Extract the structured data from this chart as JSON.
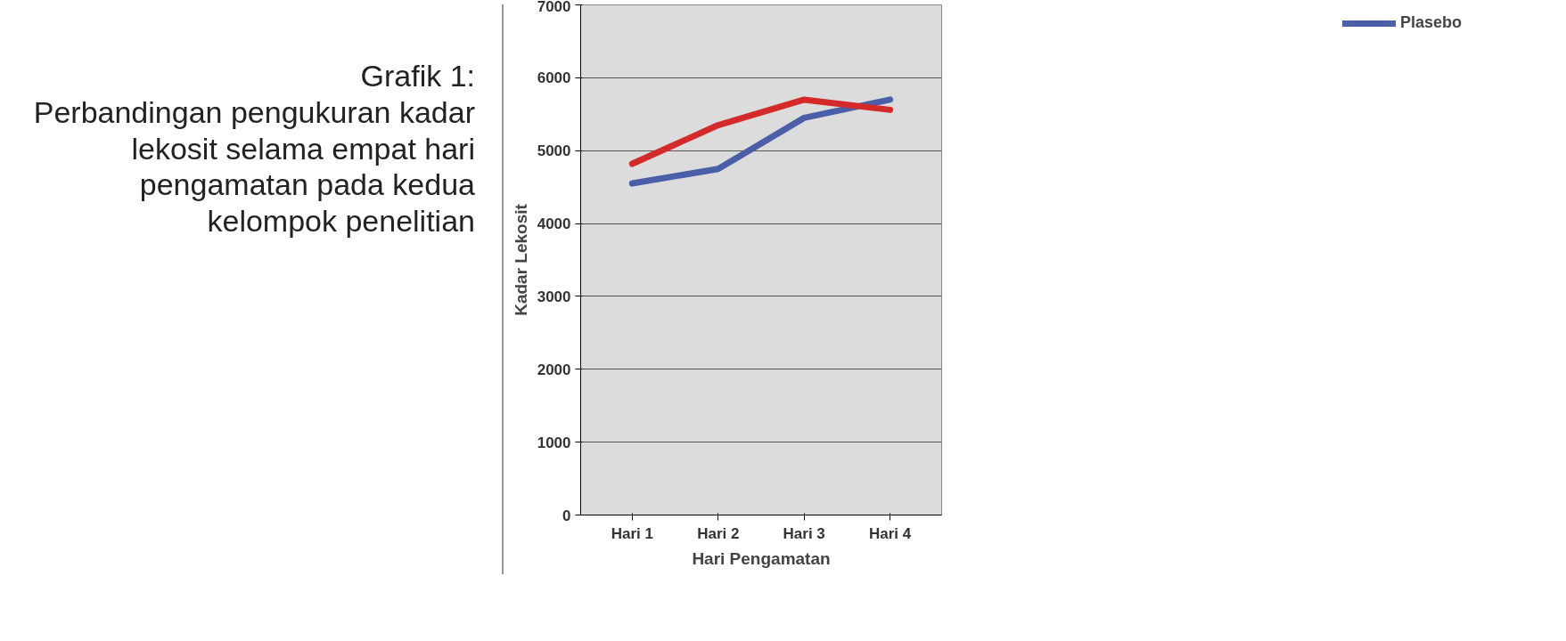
{
  "chart_data": {
    "type": "line",
    "title": "Grafik 1:",
    "subtitle": "Perbandingan pengukuran kadar lekosit selama empat hari pengamatan pada kedua kelompok penelitian",
    "xlabel": "Hari Pengamatan",
    "ylabel": "Kadar Lekosit",
    "categories": [
      "Hari 1",
      "Hari 2",
      "Hari 3",
      "Hari 4"
    ],
    "series": [
      {
        "name": "Plasebo",
        "color": "#4a5fa8",
        "values": [
          4550,
          4750,
          5450,
          5700
        ]
      },
      {
        "color": "#d42a2a",
        "values": [
          4820,
          5350,
          5700,
          5560
        ]
      }
    ],
    "ylim": [
      0,
      7000
    ],
    "yticks": [
      0,
      1000,
      2000,
      3000,
      4000,
      5000,
      6000,
      7000
    ],
    "grid": "y",
    "legend": "right",
    "marker": "none",
    "line_style": "solid"
  }
}
